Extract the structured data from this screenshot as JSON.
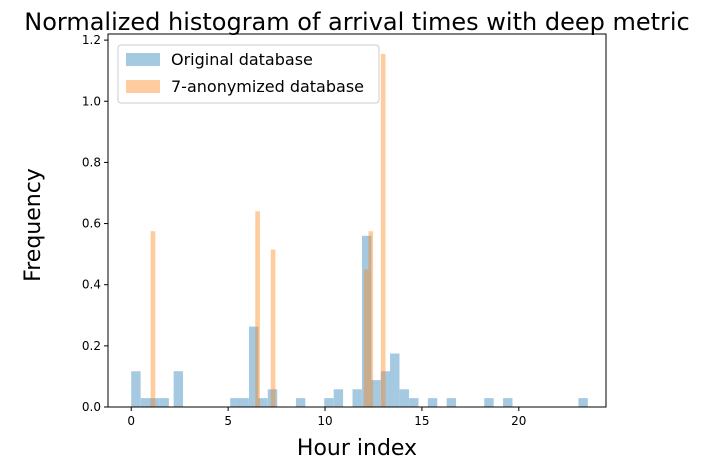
{
  "chart_data": {
    "type": "bar",
    "title": "Normalized histogram of arrival times with deep metric",
    "xlabel": "Hour index",
    "ylabel": "Frequency",
    "xlim": [
      -1.2,
      24.5
    ],
    "ylim": [
      0,
      1.22
    ],
    "xticks": [
      0,
      5,
      10,
      15,
      20
    ],
    "yticks": [
      0.0,
      0.2,
      0.4,
      0.6,
      0.8,
      1.0,
      1.2
    ],
    "ytick_labels": [
      "0.0",
      "0.2",
      "0.4",
      "0.6",
      "0.8",
      "1.0",
      "1.2"
    ],
    "legend_position": "upper-left",
    "series": [
      {
        "name": "Original database",
        "color": "#1f77b4",
        "alpha": 0.4,
        "bin_width": 0.485,
        "bins": [
          {
            "x": 0.24,
            "y": 0.117
          },
          {
            "x": 0.73,
            "y": 0.029
          },
          {
            "x": 1.21,
            "y": 0.029
          },
          {
            "x": 1.7,
            "y": 0.029
          },
          {
            "x": 2.43,
            "y": 0.117
          },
          {
            "x": 5.35,
            "y": 0.029
          },
          {
            "x": 5.83,
            "y": 0.029
          },
          {
            "x": 6.32,
            "y": 0.263
          },
          {
            "x": 6.8,
            "y": 0.029
          },
          {
            "x": 7.29,
            "y": 0.058
          },
          {
            "x": 8.74,
            "y": 0.029
          },
          {
            "x": 10.2,
            "y": 0.029
          },
          {
            "x": 10.69,
            "y": 0.058
          },
          {
            "x": 11.66,
            "y": 0.058
          },
          {
            "x": 12.15,
            "y": 0.56
          },
          {
            "x": 12.63,
            "y": 0.088
          },
          {
            "x": 13.12,
            "y": 0.117
          },
          {
            "x": 13.6,
            "y": 0.175
          },
          {
            "x": 14.09,
            "y": 0.058
          },
          {
            "x": 14.58,
            "y": 0.029
          },
          {
            "x": 15.55,
            "y": 0.029
          },
          {
            "x": 16.52,
            "y": 0.029
          },
          {
            "x": 18.46,
            "y": 0.029
          },
          {
            "x": 19.43,
            "y": 0.029
          },
          {
            "x": 23.32,
            "y": 0.029
          }
        ]
      },
      {
        "name": "7-anonymized database",
        "color": "#ff7f0e",
        "alpha": 0.4,
        "bin_width": 0.24,
        "bins": [
          {
            "x": 1.12,
            "y": 0.575
          },
          {
            "x": 6.52,
            "y": 0.64
          },
          {
            "x": 7.32,
            "y": 0.515
          },
          {
            "x": 12.12,
            "y": 0.45
          },
          {
            "x": 12.36,
            "y": 0.575
          },
          {
            "x": 13.0,
            "y": 1.155
          }
        ]
      }
    ]
  }
}
